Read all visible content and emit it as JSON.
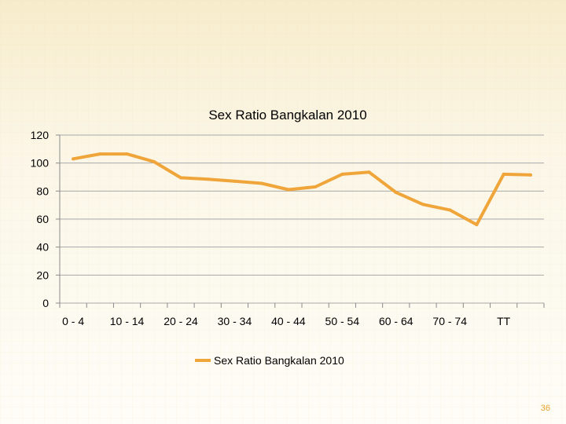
{
  "chart_data": {
    "type": "line",
    "title": "Sex Ratio Bangkalan 2010",
    "xlabel": "",
    "ylabel": "",
    "x_tick_labels": [
      "0 - 4",
      "10 - 14",
      "20 - 24",
      "30 - 34",
      "40 - 44",
      "50 - 54",
      "60 - 64",
      "70 - 74",
      "TT"
    ],
    "ylim": [
      0,
      120
    ],
    "y_ticks": [
      0,
      20,
      40,
      60,
      80,
      100,
      120
    ],
    "grid": true,
    "legend_position": "bottom",
    "series": [
      {
        "name": "Sex Ratio Bangkalan 2010",
        "color": "#f0a53a",
        "values": [
          103,
          106.5,
          106.5,
          101,
          89.5,
          88.5,
          87,
          85.5,
          81,
          83,
          92,
          93.5,
          79,
          70.5,
          66.5,
          56,
          92,
          91.5
        ]
      }
    ]
  },
  "slide": {
    "page_number": "36",
    "accent_color": "#e8a22c"
  }
}
